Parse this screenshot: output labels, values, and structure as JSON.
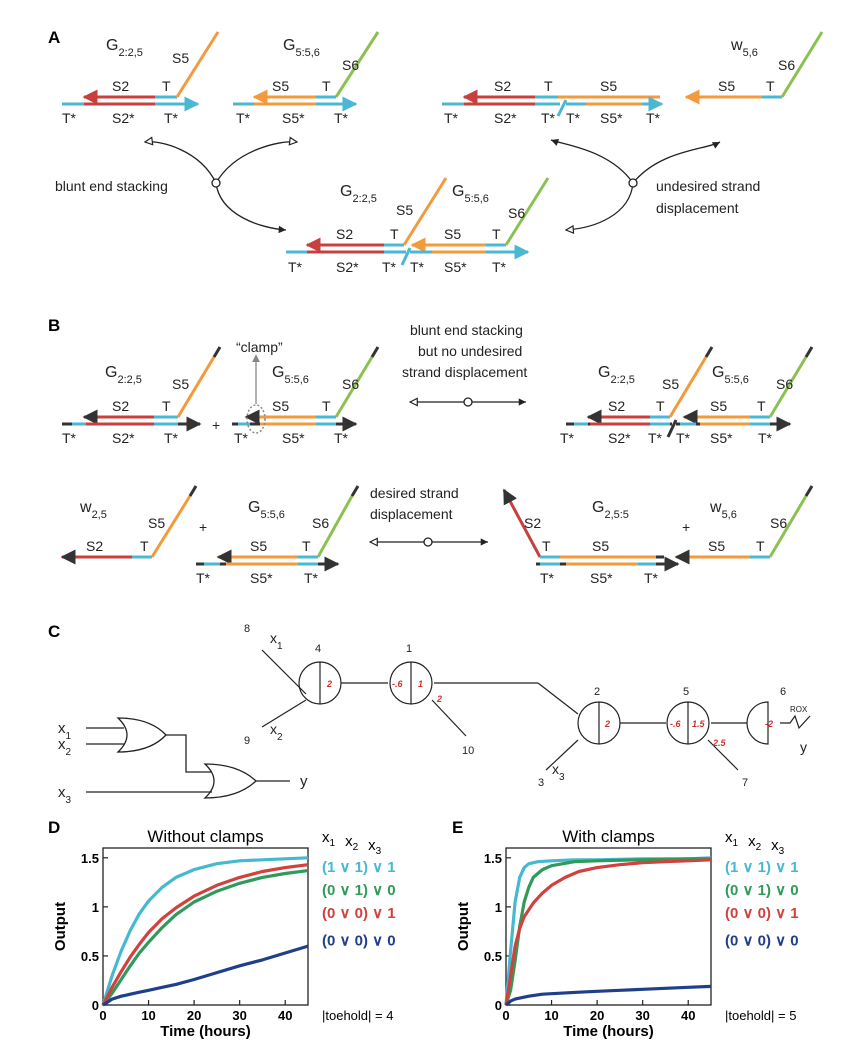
{
  "colors": {
    "red": "#c8403d",
    "orange": "#f39a3c",
    "green": "#8cc152",
    "cyan": "#4bb8d3",
    "dark": "#333333",
    "plot_cyan": "#46b9d2",
    "plot_green": "#2f9a5a",
    "plot_red": "#d1423f",
    "plot_navy": "#1f3f8a",
    "label_grey": "#555555"
  },
  "panel_labels": {
    "a": "A",
    "b": "B",
    "c": "C",
    "d": "D",
    "e": "E"
  },
  "panel_a": {
    "g225": "G",
    "g225_sub": "2:2,5",
    "g556": "G",
    "g556_sub": "5:5,6",
    "w56": "w",
    "w56_sub": "5,6",
    "s2": "S2",
    "s5": "S5",
    "s6": "S6",
    "t": "T",
    "tstar": "T*",
    "s2star": "S2*",
    "s5star": "S5*",
    "blunt": "blunt end stacking",
    "undesired_1": "undesired strand",
    "undesired_2": "displacement"
  },
  "panel_b": {
    "clamp": "“clamp”",
    "plus": "+",
    "w25": "w",
    "w25_sub": "2,5",
    "g2255": "G",
    "g2255_sub": "2,5:5",
    "blunt_1": "blunt end stacking",
    "blunt_2": "but no undesired",
    "blunt_3": "strand displacement",
    "desired_1": "desired strand",
    "desired_2": "displacement"
  },
  "panel_c": {
    "x1": "x",
    "x1_sub": "1",
    "x2": "x",
    "x2_sub": "2",
    "x3": "x",
    "x3_sub": "3",
    "y": "y",
    "rox": "ROX",
    "n8": "8",
    "n9": "9",
    "n4": "4",
    "n1": "1",
    "n10": "10",
    "n2": "2",
    "n3": "3",
    "n5": "5",
    "n7": "7",
    "n6": "6",
    "v2a": "2",
    "v06a": "-.6",
    "v1": "1",
    "v2b": "2",
    "v2c": "2",
    "v06b": "-.6",
    "v15": "1.5",
    "v25": "2.5",
    "vm2": "-2"
  },
  "legend_header": {
    "x1": "x",
    "x1_sub": "1",
    "x2": "x",
    "x2_sub": "2",
    "x3": "x",
    "x3_sub": "3"
  },
  "chart_data": [
    {
      "type": "line",
      "title": "Without clamps",
      "xlabel": "Time (hours)",
      "ylabel": "Output",
      "xlim": [
        0,
        45
      ],
      "ylim": [
        0,
        1.6
      ],
      "xticks": [
        "0",
        "10",
        "20",
        "30",
        "40"
      ],
      "yticks": [
        "0",
        "0.5",
        "1",
        "1.5"
      ],
      "note": "|toehold| = 4",
      "series": [
        {
          "name": "(1 ∨ 1) ∨ 1",
          "color": "#46b9d2",
          "x": [
            0,
            2,
            4,
            6,
            8,
            10,
            13,
            16,
            20,
            25,
            30,
            35,
            40,
            45
          ],
          "y": [
            0,
            0.3,
            0.55,
            0.76,
            0.93,
            1.06,
            1.2,
            1.3,
            1.38,
            1.44,
            1.47,
            1.48,
            1.49,
            1.5
          ]
        },
        {
          "name": "(0 ∨ 1) ∨ 0",
          "color": "#2f9a5a",
          "x": [
            0,
            2,
            4,
            6,
            8,
            10,
            13,
            16,
            20,
            25,
            30,
            35,
            40,
            45
          ],
          "y": [
            0,
            0.12,
            0.26,
            0.4,
            0.53,
            0.64,
            0.79,
            0.92,
            1.05,
            1.16,
            1.24,
            1.3,
            1.34,
            1.37
          ]
        },
        {
          "name": "(0 ∨ 0) ∨ 1",
          "color": "#d1423f",
          "x": [
            0,
            2,
            4,
            6,
            8,
            10,
            13,
            16,
            20,
            25,
            30,
            35,
            40,
            45
          ],
          "y": [
            0,
            0.18,
            0.34,
            0.49,
            0.62,
            0.74,
            0.88,
            0.99,
            1.11,
            1.22,
            1.3,
            1.36,
            1.4,
            1.43
          ]
        },
        {
          "name": "(0 ∨ 0) ∨ 0",
          "color": "#1f3f8a",
          "x": [
            0,
            2,
            4,
            6,
            8,
            10,
            13,
            16,
            20,
            25,
            30,
            35,
            40,
            45
          ],
          "y": [
            0,
            0.06,
            0.09,
            0.11,
            0.13,
            0.15,
            0.18,
            0.21,
            0.26,
            0.33,
            0.4,
            0.46,
            0.53,
            0.6
          ]
        }
      ]
    },
    {
      "type": "line",
      "title": "With clamps",
      "xlabel": "Time (hours)",
      "ylabel": "Output",
      "xlim": [
        0,
        45
      ],
      "ylim": [
        0,
        1.6
      ],
      "xticks": [
        "0",
        "10",
        "20",
        "30",
        "40"
      ],
      "yticks": [
        "0",
        "0.5",
        "1",
        "1.5"
      ],
      "note": "|toehold| = 5",
      "series": [
        {
          "name": "(1 ∨ 1) ∨ 1",
          "color": "#46b9d2",
          "x": [
            0,
            1,
            2,
            3,
            4,
            5,
            7,
            10,
            15,
            20,
            30,
            40,
            45
          ],
          "y": [
            0,
            0.55,
            1.05,
            1.3,
            1.4,
            1.44,
            1.46,
            1.47,
            1.48,
            1.48,
            1.49,
            1.49,
            1.5
          ]
        },
        {
          "name": "(0 ∨ 1) ∨ 0",
          "color": "#2f9a5a",
          "x": [
            0,
            1,
            2,
            3,
            4,
            5,
            6,
            8,
            10,
            15,
            20,
            30,
            40,
            45
          ],
          "y": [
            0,
            0.15,
            0.45,
            0.8,
            1.05,
            1.2,
            1.3,
            1.38,
            1.42,
            1.46,
            1.47,
            1.48,
            1.49,
            1.49
          ]
        },
        {
          "name": "(0 ∨ 0) ∨ 1",
          "color": "#d1423f",
          "x": [
            0,
            1,
            2,
            3,
            4,
            6,
            8,
            10,
            13,
            16,
            20,
            25,
            30,
            35,
            40,
            45
          ],
          "y": [
            0,
            0.3,
            0.6,
            0.78,
            0.9,
            1.04,
            1.14,
            1.22,
            1.3,
            1.36,
            1.4,
            1.43,
            1.45,
            1.46,
            1.47,
            1.48
          ]
        },
        {
          "name": "(0 ∨ 0) ∨ 0",
          "color": "#1f3f8a",
          "x": [
            0,
            1,
            2,
            3,
            5,
            8,
            12,
            16,
            20,
            25,
            30,
            35,
            40,
            45
          ],
          "y": [
            0,
            0.04,
            0.06,
            0.07,
            0.09,
            0.11,
            0.12,
            0.13,
            0.14,
            0.15,
            0.16,
            0.17,
            0.18,
            0.19
          ]
        }
      ]
    }
  ]
}
